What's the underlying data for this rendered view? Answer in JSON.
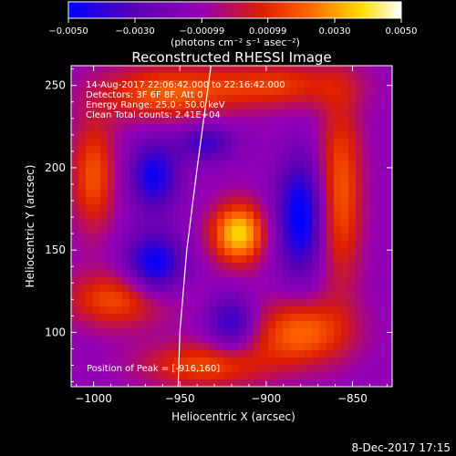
{
  "chart_data": {
    "type": "heatmap",
    "title": "Reconstructed RHESSI Image",
    "xlabel": "Heliocentric X (arcsec)",
    "ylabel": "Heliocentric Y (arcsec)",
    "xlim": [
      -1013,
      -827
    ],
    "ylim": [
      67,
      262
    ],
    "xticks": [
      -1000,
      -950,
      -900,
      -850
    ],
    "xtick_labels": [
      "−1000",
      "−950",
      "−900",
      "−850"
    ],
    "yticks": [
      100,
      150,
      200,
      250
    ],
    "ytick_labels": [
      "100",
      "150",
      "200",
      "250"
    ],
    "colorbar": {
      "units": "(photons cm⁻² s⁻¹ asec⁻²)",
      "range": [
        -0.005,
        0.005
      ],
      "ticks": [
        -0.005,
        -0.003,
        -0.00099,
        0.00099,
        0.003,
        0.005
      ],
      "tick_labels": [
        "−0.0050",
        "−0.0030",
        "−0.00099",
        "0.00099",
        "0.0030",
        "0.0050"
      ],
      "colormap": [
        "#0000ff",
        "#5a00b4",
        "#9600b4",
        "#dc1e00",
        "#ff6400",
        "#ffdc00",
        "#ffffff"
      ]
    },
    "annotations": [
      "14-Aug-2017 22:06:42.000 to 22:16:42.000",
      "Detectors: 3F 6F 8F, Att 0",
      "Energy Range: 25.0 - 50.0 keV",
      "Clean    Total counts: 2.41E+04"
    ],
    "peak_label": "Position of Peak = [-916,160]",
    "peak": [
      -916,
      160
    ],
    "limb": [
      [
        -932,
        262
      ],
      [
        -940,
        200
      ],
      [
        -946,
        150
      ],
      [
        -950,
        100
      ],
      [
        -951,
        67
      ]
    ],
    "sources": [
      {
        "x": -916,
        "y": 160,
        "sx": 11,
        "sy": 13,
        "amp": 0.005
      },
      {
        "x": -1000,
        "y": 195,
        "sx": 9,
        "sy": 24,
        "amp": 0.003
      },
      {
        "x": -985,
        "y": 120,
        "sx": 22,
        "sy": 12,
        "amp": 0.003
      },
      {
        "x": -935,
        "y": 80,
        "sx": 26,
        "sy": 10,
        "amp": 0.0028
      },
      {
        "x": -880,
        "y": 100,
        "sx": 20,
        "sy": 14,
        "amp": 0.0034
      },
      {
        "x": -857,
        "y": 185,
        "sx": 9,
        "sy": 40,
        "amp": 0.0032
      },
      {
        "x": -960,
        "y": 245,
        "sx": 26,
        "sy": 12,
        "amp": 0.003
      },
      {
        "x": -895,
        "y": 250,
        "sx": 30,
        "sy": 10,
        "amp": 0.0025
      },
      {
        "x": -965,
        "y": 195,
        "sx": 10,
        "sy": 15,
        "amp": -0.0035
      },
      {
        "x": -965,
        "y": 140,
        "sx": 12,
        "sy": 14,
        "amp": -0.004
      },
      {
        "x": -880,
        "y": 170,
        "sx": 10,
        "sy": 25,
        "amp": -0.004
      },
      {
        "x": -920,
        "y": 105,
        "sx": 10,
        "sy": 12,
        "amp": -0.003
      },
      {
        "x": -935,
        "y": 215,
        "sx": 12,
        "sy": 8,
        "amp": -0.0025
      }
    ],
    "grid": false
  },
  "footer": {
    "timestamp": "8-Dec-2017 17:15"
  }
}
